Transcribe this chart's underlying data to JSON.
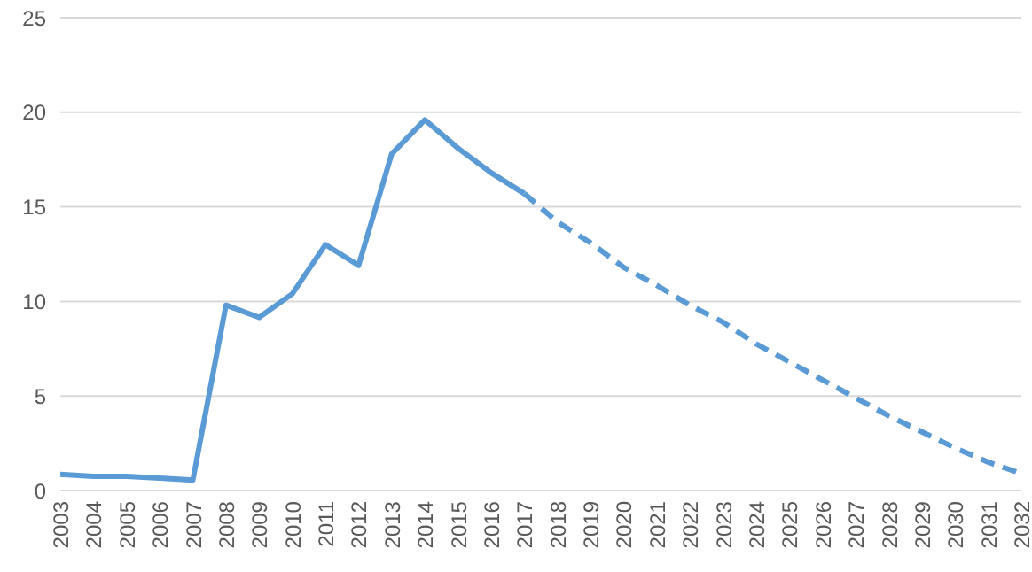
{
  "chart_data": {
    "type": "line",
    "categories": [
      "2003",
      "2004",
      "2005",
      "2006",
      "2007",
      "2008",
      "2009",
      "2010",
      "2011",
      "2012",
      "2013",
      "2014",
      "2015",
      "2016",
      "2017",
      "2018",
      "2019",
      "2020",
      "2021",
      "2022",
      "2023",
      "2024",
      "2025",
      "2026",
      "2027",
      "2028",
      "2029",
      "2030",
      "2031",
      "2032"
    ],
    "series": [
      {
        "color": "#5b9bd5",
        "line_style": "solid",
        "values": [
          0.85,
          0.75,
          0.75,
          0.65,
          0.55,
          9.8,
          9.15,
          10.4,
          13.0,
          11.9,
          17.8,
          19.6,
          18.1,
          16.8,
          15.7,
          null,
          null,
          null,
          null,
          null,
          null,
          null,
          null,
          null,
          null,
          null,
          null,
          null,
          null,
          null
        ]
      },
      {
        "color": "#5b9bd5",
        "line_style": "dashed",
        "values": [
          null,
          null,
          null,
          null,
          null,
          null,
          null,
          null,
          null,
          null,
          null,
          null,
          null,
          null,
          15.7,
          14.2,
          13.1,
          11.8,
          10.85,
          9.8,
          8.9,
          7.75,
          6.8,
          5.85,
          4.9,
          3.95,
          3.1,
          2.25,
          1.5,
          0.9
        ]
      }
    ],
    "ylim": [
      0,
      25
    ],
    "yticks": [
      0,
      5,
      10,
      15,
      20,
      25
    ],
    "grid": "y",
    "legend": false,
    "marker": "none"
  }
}
